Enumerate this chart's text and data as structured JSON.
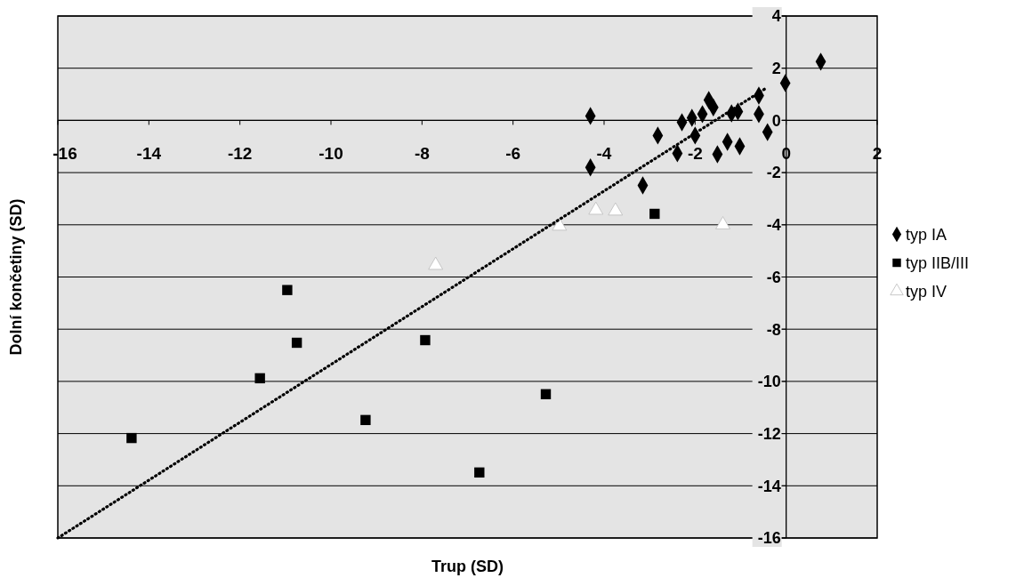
{
  "chart_data": {
    "type": "scatter",
    "xlabel": "Trup (SD)",
    "ylabel": "Dolní končetiny (SD)",
    "xlim": [
      -16,
      2
    ],
    "xticks": [
      -16,
      -14,
      -12,
      -10,
      -8,
      -6,
      -4,
      -2,
      0,
      2
    ],
    "ylim": [
      -16,
      4
    ],
    "yticks": [
      -16,
      -14,
      -12,
      -10,
      -8,
      -6,
      -4,
      -2,
      0,
      2,
      4
    ],
    "grid": "y",
    "legend": "right",
    "series": [
      {
        "name": "typ IA",
        "color": "#000000",
        "marker": "diamond",
        "x": [
          0.76,
          -0.02,
          -0.6,
          -0.6,
          -0.41,
          -1.06,
          -1.2,
          -1.7,
          -1.6,
          -1.84,
          -2.07,
          -2.29,
          -2.0,
          -2.82,
          -2.39,
          -1.51,
          -1.29,
          -1.02,
          -4.3,
          -4.3,
          -3.15
        ],
        "values": [
          2.25,
          1.43,
          0.95,
          0.24,
          -0.45,
          0.34,
          0.27,
          0.78,
          0.5,
          0.24,
          0.1,
          -0.07,
          -0.58,
          -0.58,
          -1.26,
          -1.3,
          -0.82,
          -0.99,
          0.17,
          -1.8,
          -2.49
        ]
      },
      {
        "name": "typ IIB/III",
        "color": "#000000",
        "marker": "square",
        "x": [
          -2.89,
          -10.96,
          -10.75,
          -7.93,
          -11.56,
          -9.24,
          -14.38,
          -6.74,
          -5.28
        ],
        "values": [
          -3.58,
          -6.5,
          -8.52,
          -8.42,
          -9.88,
          -11.48,
          -12.17,
          -13.49,
          -10.49
        ]
      },
      {
        "name": "typ IV",
        "color": "#ffffff",
        "marker": "triangle",
        "x": [
          -7.7,
          -4.18,
          -3.75,
          -4.98,
          -1.39
        ],
        "values": [
          -5.55,
          -3.44,
          -3.47,
          -4.05,
          -4.0
        ]
      },
      {
        "type": "line",
        "color": "#000000",
        "marker": "none",
        "line_style": "dotted",
        "x": [
          -16,
          -0.42
        ],
        "values": [
          -16,
          1.26
        ]
      }
    ]
  }
}
